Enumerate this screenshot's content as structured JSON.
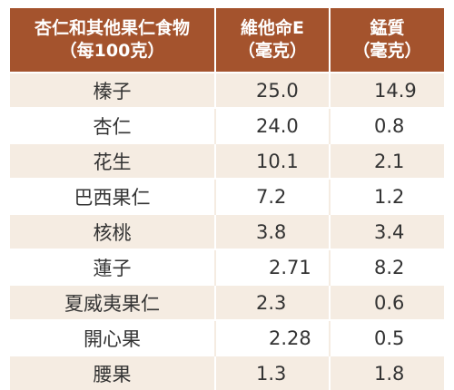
{
  "header": {
    "col1_line1": "杏仁和其他果仁食物",
    "col1_line2": "（每100克）",
    "col2_line1": "維他命E",
    "col2_line2": "（毫克）",
    "col3_line1": "錳質",
    "col3_line2": "（毫克）"
  },
  "rows": [
    {
      "name": "榛子",
      "vitamin_e": "25.0",
      "manganese": "14.9"
    },
    {
      "name": "杏仁",
      "vitamin_e": "24.0",
      "manganese": "0.8"
    },
    {
      "name": "花生",
      "vitamin_e": "10.1",
      "manganese": "2.1"
    },
    {
      "name": "巴西果仁",
      "vitamin_e": "7.2",
      "manganese": "1.2"
    },
    {
      "name": "核桃",
      "vitamin_e": "3.8",
      "manganese": "3.4"
    },
    {
      "name": "蓮子",
      "vitamin_e": "2.71",
      "manganese": "8.2"
    },
    {
      "name": "夏威夷果仁",
      "vitamin_e": "2.3",
      "manganese": "0.6"
    },
    {
      "name": "開心果",
      "vitamin_e": "2.28",
      "manganese": "0.5"
    },
    {
      "name": "腰果",
      "vitamin_e": "1.3",
      "manganese": "1.8"
    }
  ],
  "colors": {
    "header_bg": "#a4532d",
    "stripe": "#f5ece2",
    "text": "#333333"
  }
}
